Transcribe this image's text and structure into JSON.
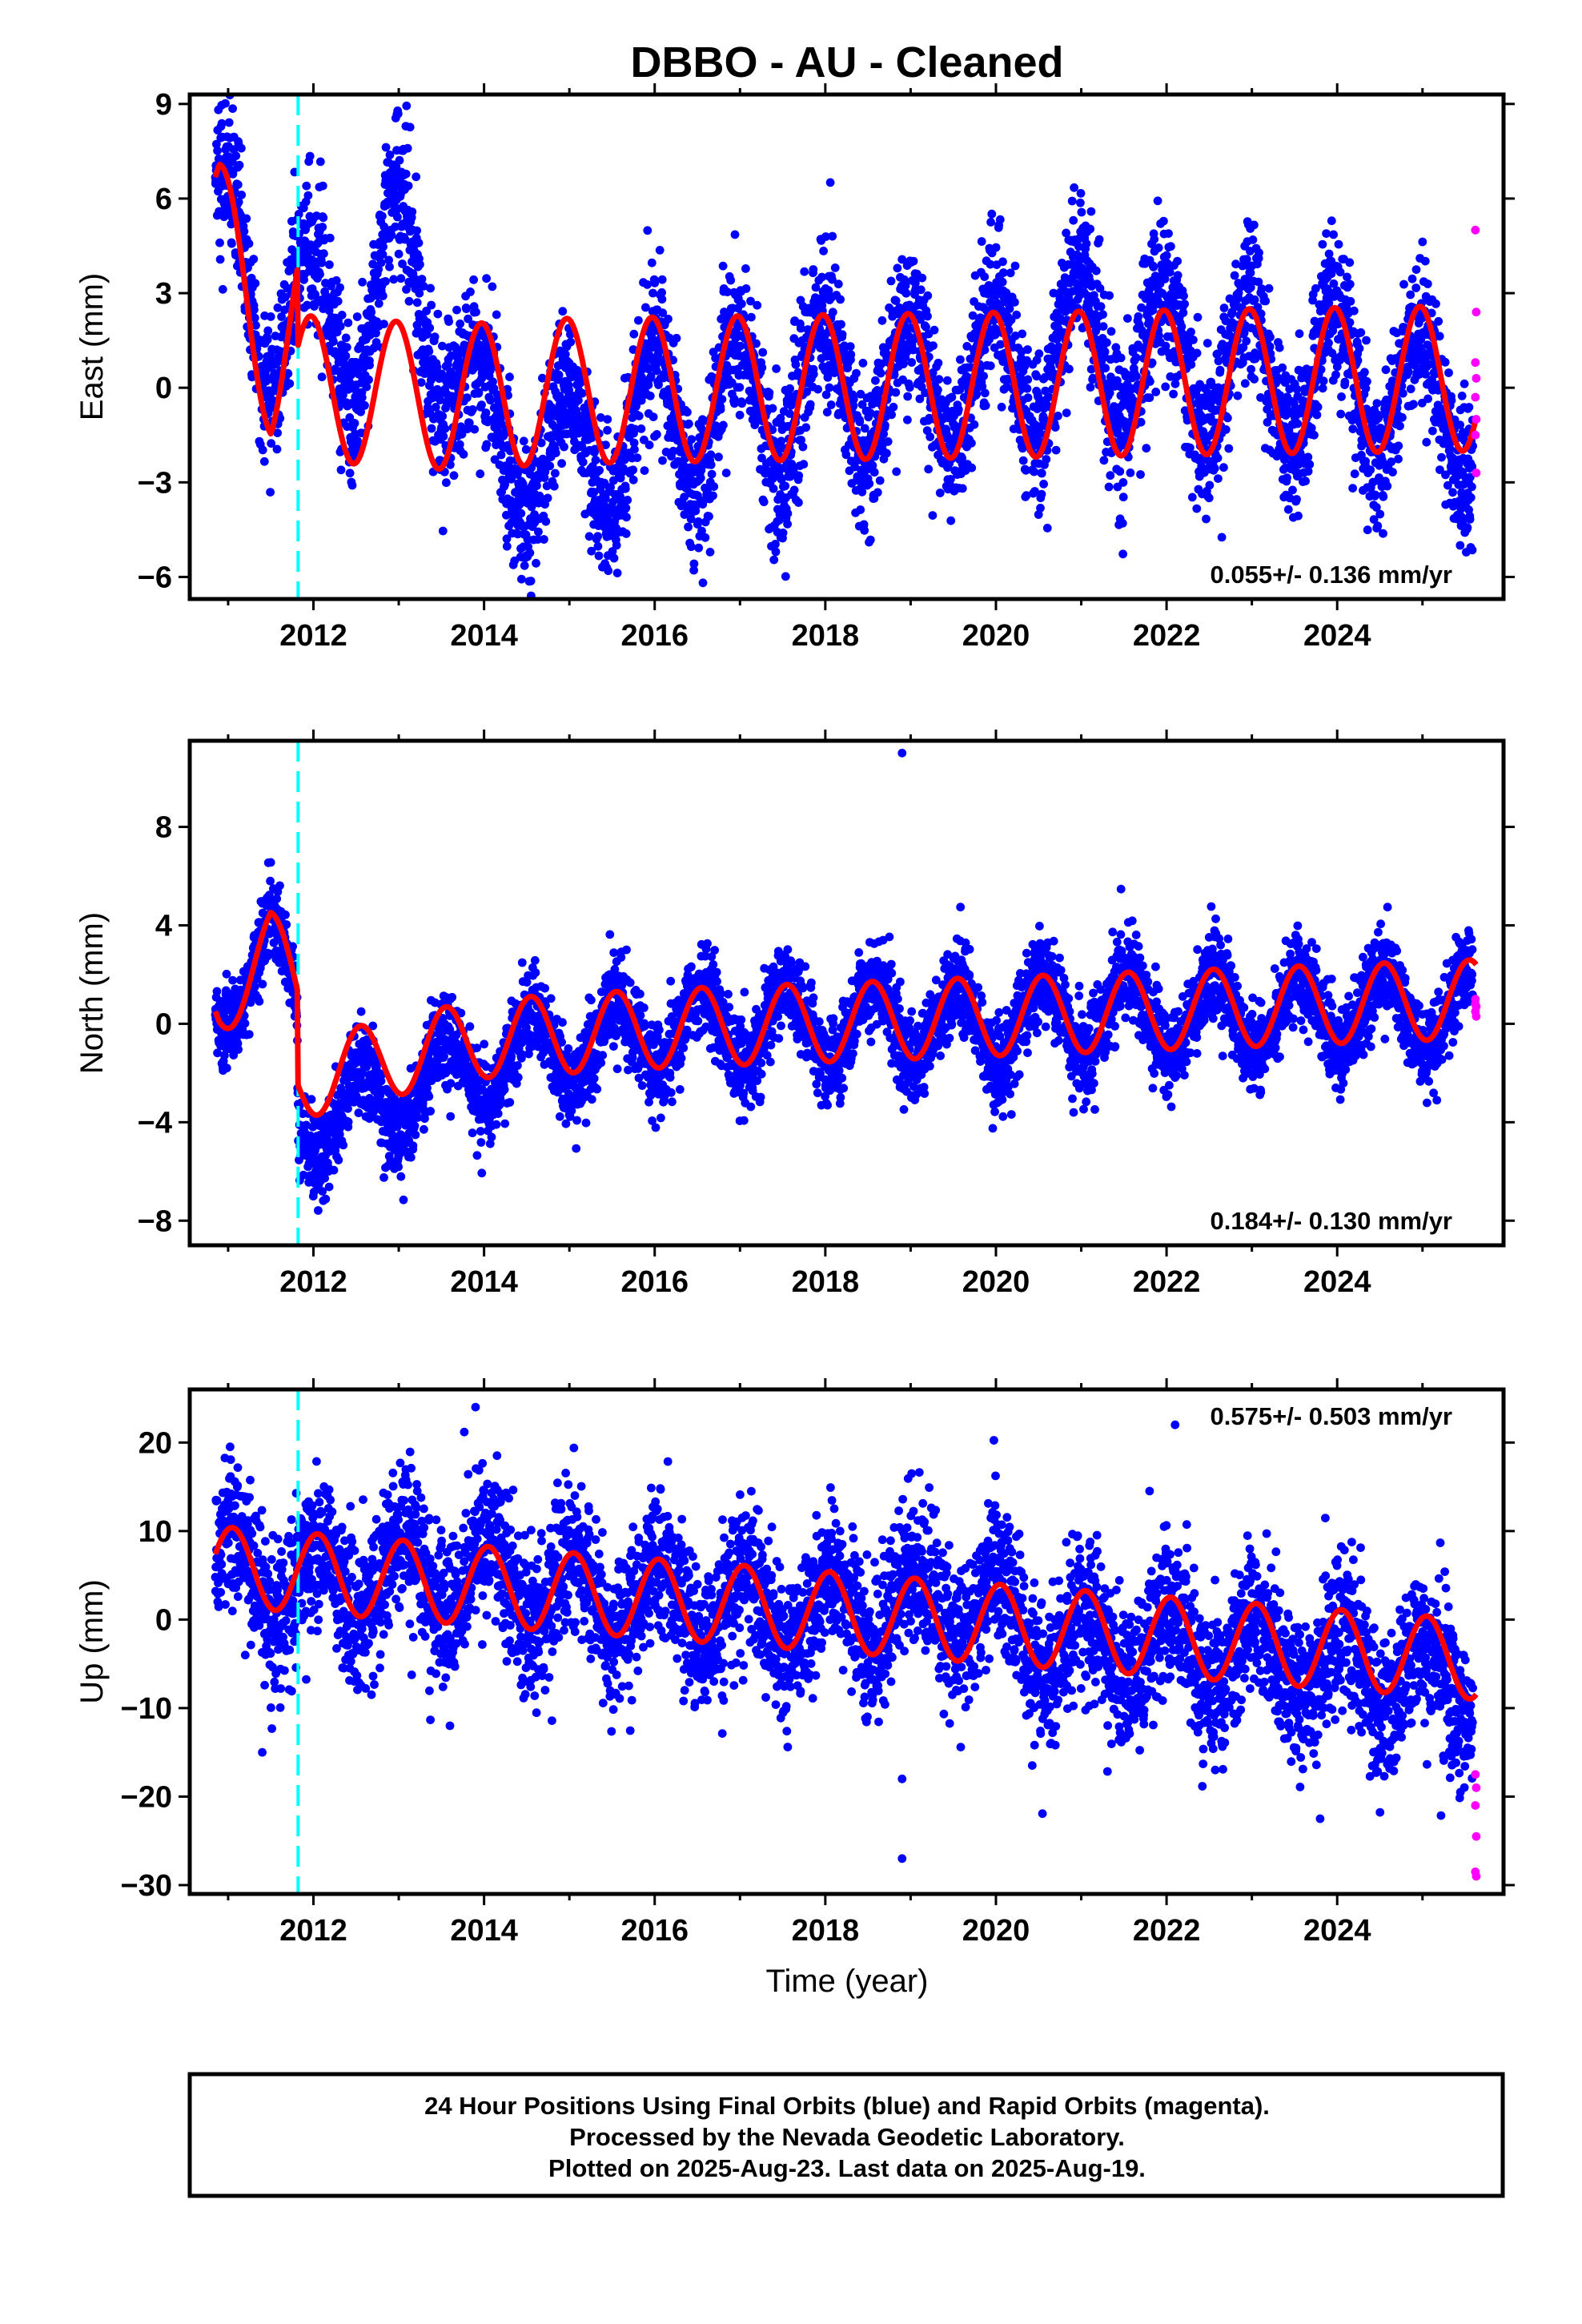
{
  "title": "DBBO  - AU - Cleaned",
  "xlabel": "Time (year)",
  "footer": [
    "24 Hour Positions Using Final Orbits (blue) and Rapid Orbits (magenta).",
    "Processed by the Nevada Geodetic Laboratory.",
    "Plotted on 2025-Aug-23. Last data on 2025-Aug-19."
  ],
  "colors": {
    "final_orbits": "#0000ff",
    "rapid_orbits": "#ff00ff",
    "model_fit": "#ff0000",
    "event_marker": "#00ffff"
  },
  "chart_data": [
    {
      "type": "scatter",
      "name": "east",
      "ylabel": "East (mm)",
      "rate_text": "0.055+/- 0.136 mm/yr",
      "xlim": [
        2010.55,
        2025.95
      ],
      "ylim": [
        -6.7,
        9.3
      ],
      "yticks": [
        -6,
        -3,
        0,
        3,
        6,
        9
      ],
      "xticks": [
        2012,
        2014,
        2016,
        2018,
        2020,
        2022,
        2024
      ],
      "event_x": 2011.82,
      "data_start": 2010.85,
      "data_end": 2025.63,
      "trend_points": [
        [
          2010.9,
          5.0
        ],
        [
          2011.5,
          2.0
        ],
        [
          2011.82,
          2.5
        ],
        [
          2012.5,
          1.5
        ],
        [
          2013.0,
          4.5
        ],
        [
          2014.0,
          -1.5
        ],
        [
          2015.0,
          -2.3
        ],
        [
          2016.0,
          -1.0
        ],
        [
          2018.0,
          0.0
        ],
        [
          2020.0,
          0.3
        ],
        [
          2021.0,
          1.5
        ],
        [
          2022.0,
          0.8
        ],
        [
          2024.0,
          0.3
        ],
        [
          2025.6,
          -0.7
        ]
      ],
      "model_trend_points": [
        [
          2010.9,
          5.0
        ],
        [
          2011.5,
          0.8
        ],
        [
          2011.81,
          2.5
        ],
        [
          2011.82,
          0.0
        ],
        [
          2013.6,
          -0.3
        ],
        [
          2015.0,
          -0.1
        ],
        [
          2025.6,
          0.3
        ]
      ],
      "seasonal_amplitude": 2.3,
      "seasonal_phase": 0.97,
      "scatter_spread": 1.2,
      "rapid_points": [
        [
          2025.62,
          5.0
        ],
        [
          2025.63,
          2.4
        ],
        [
          2025.62,
          0.8
        ],
        [
          2025.63,
          0.3
        ],
        [
          2025.62,
          -0.3
        ],
        [
          2025.63,
          -1.0
        ],
        [
          2025.62,
          -1.5
        ],
        [
          2025.63,
          -2.7
        ]
      ]
    },
    {
      "type": "scatter",
      "name": "north",
      "ylabel": "North (mm)",
      "rate_text": "0.184+/- 0.130 mm/yr",
      "xlim": [
        2010.55,
        2025.95
      ],
      "ylim": [
        -9.0,
        11.5
      ],
      "yticks": [
        -8,
        -4,
        0,
        4,
        8
      ],
      "xticks": [
        2012,
        2014,
        2016,
        2018,
        2020,
        2022,
        2024
      ],
      "event_x": 2011.82,
      "data_start": 2010.85,
      "data_end": 2025.63,
      "trend_points": [
        [
          2010.9,
          1.0
        ],
        [
          2011.5,
          3.0
        ],
        [
          2011.81,
          1.0
        ],
        [
          2011.82,
          -4.0
        ],
        [
          2013.0,
          -3.0
        ],
        [
          2014.0,
          -1.5
        ],
        [
          2016.0,
          -0.3
        ],
        [
          2018.0,
          0.0
        ],
        [
          2020.0,
          0.0
        ],
        [
          2021.5,
          0.5
        ],
        [
          2022.5,
          0.3
        ],
        [
          2024.0,
          0.5
        ],
        [
          2025.6,
          0.5
        ]
      ],
      "model_trend_points": [
        [
          2010.9,
          1.0
        ],
        [
          2011.5,
          3.0
        ],
        [
          2011.81,
          1.5
        ],
        [
          2011.82,
          -2.3
        ],
        [
          2013.0,
          -1.3
        ],
        [
          2014.0,
          -0.6
        ],
        [
          2016.0,
          -0.2
        ],
        [
          2025.6,
          1.0
        ]
      ],
      "seasonal_amplitude": 1.6,
      "seasonal_phase": 0.55,
      "scatter_spread": 0.9,
      "rapid_points": [
        [
          2025.62,
          1.0
        ],
        [
          2025.63,
          0.7
        ],
        [
          2025.62,
          0.5
        ],
        [
          2025.63,
          0.3
        ],
        [
          2025.62,
          0.8
        ]
      ],
      "outlier_points": [
        [
          2018.9,
          11.0
        ]
      ]
    },
    {
      "type": "scatter",
      "name": "up",
      "ylabel": "Up (mm)",
      "rate_text": "0.575+/- 0.503 mm/yr",
      "xlim": [
        2010.55,
        2025.95
      ],
      "ylim": [
        -31,
        26
      ],
      "yticks": [
        -30,
        -20,
        -10,
        0,
        10,
        20
      ],
      "xticks": [
        2012,
        2014,
        2016,
        2018,
        2020,
        2022,
        2024
      ],
      "event_x": 2011.82,
      "data_start": 2010.85,
      "data_end": 2025.63,
      "trend_points": [
        [
          2010.9,
          6.0
        ],
        [
          2012.0,
          4.0
        ],
        [
          2014.0,
          5.0
        ],
        [
          2016.0,
          2.0
        ],
        [
          2018.0,
          0.5
        ],
        [
          2020.0,
          2.0
        ],
        [
          2020.6,
          -3.0
        ],
        [
          2022.0,
          -3.0
        ],
        [
          2024.0,
          -5.0
        ],
        [
          2025.6,
          -8.0
        ]
      ],
      "model_trend_points": [
        [
          2010.9,
          6.0
        ],
        [
          2025.6,
          -4.5
        ]
      ],
      "seasonal_amplitude": 4.5,
      "seasonal_phase": 0.05,
      "scatter_spread": 4.2,
      "rapid_points": [
        [
          2025.62,
          -17.5
        ],
        [
          2025.63,
          -19.0
        ],
        [
          2025.62,
          -21.0
        ],
        [
          2025.63,
          -24.5
        ],
        [
          2025.62,
          -28.5
        ],
        [
          2025.63,
          -29.0
        ]
      ],
      "outlier_points": [
        [
          2013.9,
          24.0
        ],
        [
          2022.1,
          22.0
        ],
        [
          2018.9,
          -18.0
        ],
        [
          2018.9,
          -27.0
        ],
        [
          2011.4,
          -15.0
        ],
        [
          2013.6,
          -12.0
        ],
        [
          2023.8,
          -22.5
        ]
      ]
    }
  ]
}
